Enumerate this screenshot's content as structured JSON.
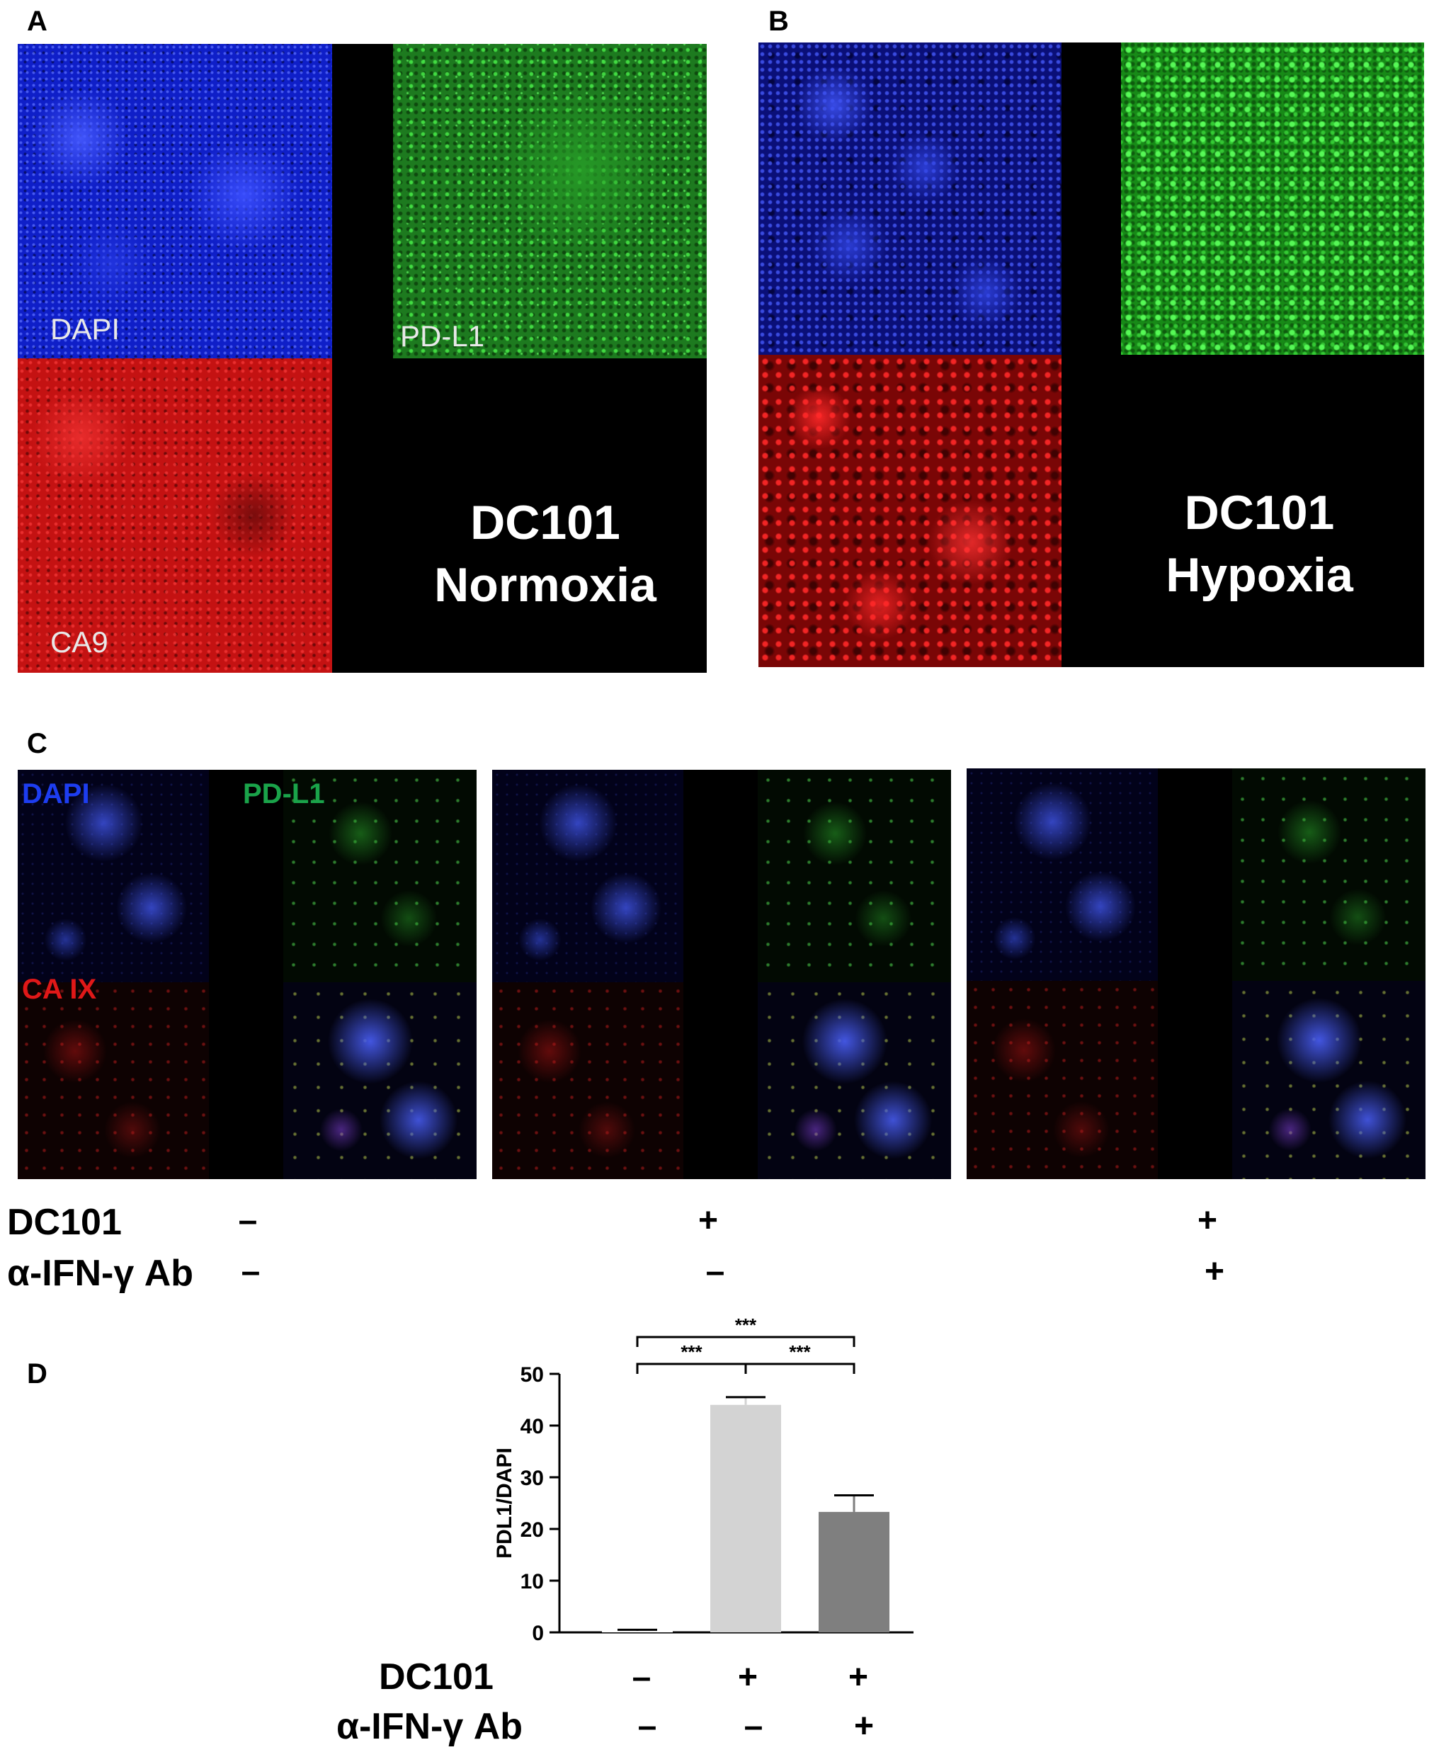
{
  "panels": {
    "a": {
      "letter": "A",
      "labels": {
        "dapi": "DAPI",
        "pdl1": "PD-L1",
        "ca9": "CA9"
      },
      "title_line1": "DC101",
      "title_line2": "Normoxia"
    },
    "b": {
      "letter": "B",
      "title_line1": "DC101",
      "title_line2": "Hypoxia"
    },
    "c": {
      "letter": "C",
      "labels": {
        "dapi": "DAPI",
        "pdl1": "PD-L1",
        "caix": "CA IX"
      },
      "label_colors": {
        "dapi": "#1d3df0",
        "pdl1": "#1aa34a",
        "caix": "#e01818"
      },
      "rows": {
        "dc101": {
          "label": "DC101",
          "values": [
            "–",
            "+",
            "+"
          ]
        },
        "ifn": {
          "label": "α-IFN-γ Ab",
          "values": [
            "–",
            "–",
            "+"
          ]
        }
      }
    },
    "d": {
      "letter": "D",
      "rows": {
        "dc101": {
          "label": "DC101",
          "values": [
            "–",
            "+",
            "+"
          ]
        },
        "ifn": {
          "label": "α-IFN-γ Ab",
          "values": [
            "–",
            "–",
            "+"
          ]
        }
      }
    }
  },
  "chart_data": {
    "type": "bar",
    "ylabel": "PDL1/DAPI",
    "ylim": [
      0,
      50
    ],
    "yticks": [
      "0",
      "10",
      "20",
      "30",
      "40",
      "50"
    ],
    "values": [
      0.3,
      44,
      23.3
    ],
    "errors": [
      0.2,
      1.5,
      3.2
    ],
    "bar_colors": [
      "#ffffff",
      "#d3d3d3",
      "#7f7f7f"
    ],
    "significance": [
      {
        "from": 0,
        "to": 1,
        "label": "***"
      },
      {
        "from": 1,
        "to": 2,
        "label": "***"
      },
      {
        "from": 0,
        "to": 2,
        "label": "***"
      }
    ]
  }
}
